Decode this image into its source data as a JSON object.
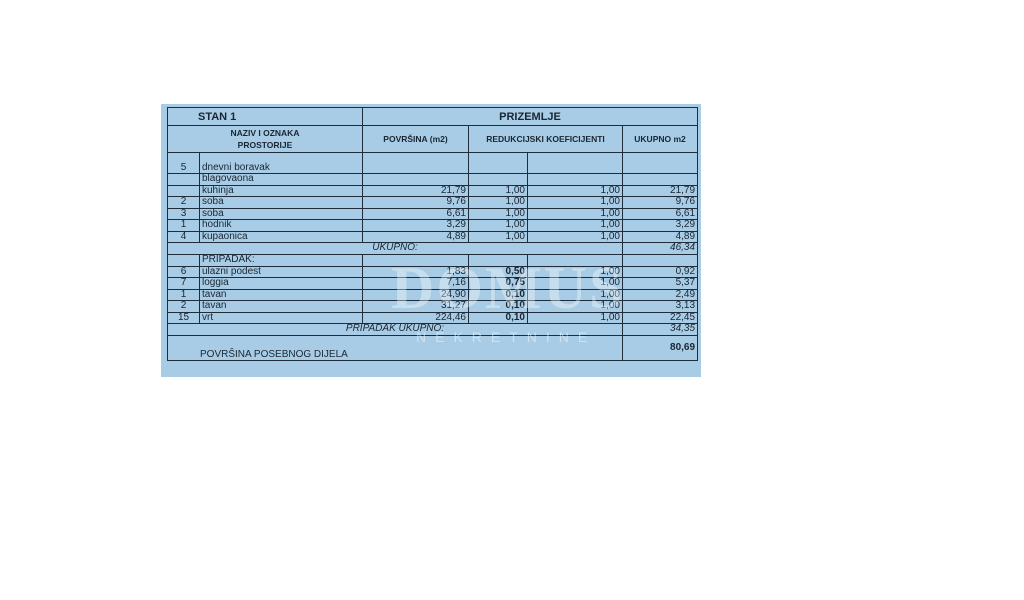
{
  "header": {
    "stan": "STAN 1",
    "floor": "PRIZEMLJE"
  },
  "columns": {
    "name": "NAZIV I OZNAKA PROSTORIJE",
    "area": "POVRŠINA (m2)",
    "coef": "REDUKCIJSKI KOEFICIJENTI",
    "total": "UKUPNO   m2"
  },
  "rooms": [
    {
      "no": "5",
      "name": "dnevni boravak",
      "area": "",
      "c1": "",
      "c2": "",
      "total": ""
    },
    {
      "no": "",
      "name": "blagovaona",
      "area": "",
      "c1": "",
      "c2": "",
      "total": ""
    },
    {
      "no": "",
      "name": "kuhinja",
      "area": "21,79",
      "c1": "1,00",
      "c2": "1,00",
      "total": "21,79"
    },
    {
      "no": "2",
      "name": "soba",
      "area": "9,76",
      "c1": "1,00",
      "c2": "1,00",
      "total": "9,76"
    },
    {
      "no": "3",
      "name": "soba",
      "area": "6,61",
      "c1": "1,00",
      "c2": "1,00",
      "total": "6,61"
    },
    {
      "no": "1",
      "name": "hodnik",
      "area": "3,29",
      "c1": "1,00",
      "c2": "1,00",
      "total": "3,29"
    },
    {
      "no": "4",
      "name": "kupaonica",
      "area": "4,89",
      "c1": "1,00",
      "c2": "1,00",
      "total": "4,89"
    }
  ],
  "subtotal": {
    "label": "UKUPNO:",
    "value": "46,34"
  },
  "pripadak_label": "PRIPADAK:",
  "pripadak": [
    {
      "no": "6",
      "name": "ulazni podest",
      "area": "1,83",
      "c1": "0,50",
      "c2": "1,00",
      "total": "0,92"
    },
    {
      "no": "7",
      "name": "loggia",
      "area": "7,16",
      "c1": "0,75",
      "c2": "1,00",
      "total": "5,37"
    },
    {
      "no": "1",
      "name": "tavan",
      "area": "24,90",
      "c1": "0,10",
      "c2": "1,00",
      "total": "2,49"
    },
    {
      "no": "2",
      "name": "tavan",
      "area": "31,27",
      "c1": "0,10",
      "c2": "1,00",
      "total": "3,13"
    },
    {
      "no": "15",
      "name": "vrt",
      "area": "224,46",
      "c1": "0,10",
      "c2": "1,00",
      "total": "22,45"
    }
  ],
  "pripadak_total": {
    "label": "PRIPADAK UKUPNO:",
    "value": "34,35"
  },
  "grand_total": {
    "label": "POVRŠINA POSEBNOG DIJELA",
    "value": "80,69"
  },
  "watermark": {
    "logo": "DOMUS",
    "sub": "NEKRETNINE"
  }
}
